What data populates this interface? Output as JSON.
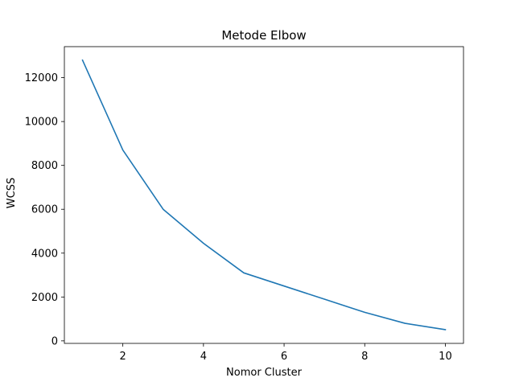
{
  "chart_data": {
    "type": "line",
    "title": "Metode Elbow",
    "xlabel": "Nomor Cluster",
    "ylabel": "WCSS",
    "x": [
      1,
      2,
      3,
      4,
      5,
      6,
      7,
      8,
      9,
      10
    ],
    "series": [
      {
        "values": [
          12800,
          8700,
          6000,
          4450,
          3100,
          2500,
          1900,
          1300,
          800,
          510
        ],
        "color": "#1f77b4"
      }
    ],
    "xlim": [
      0.55,
      10.45
    ],
    "ylim": [
      -115,
      13415
    ],
    "xticks": [
      2,
      4,
      6,
      8,
      10
    ],
    "xtick_labels": [
      "2",
      "4",
      "6",
      "8",
      "10"
    ],
    "yticks": [
      0,
      2000,
      4000,
      6000,
      8000,
      10000,
      12000
    ],
    "ytick_labels": [
      "0",
      "2000",
      "4000",
      "6000",
      "8000",
      "10000",
      "12000"
    ],
    "grid": false,
    "legend": "none"
  }
}
